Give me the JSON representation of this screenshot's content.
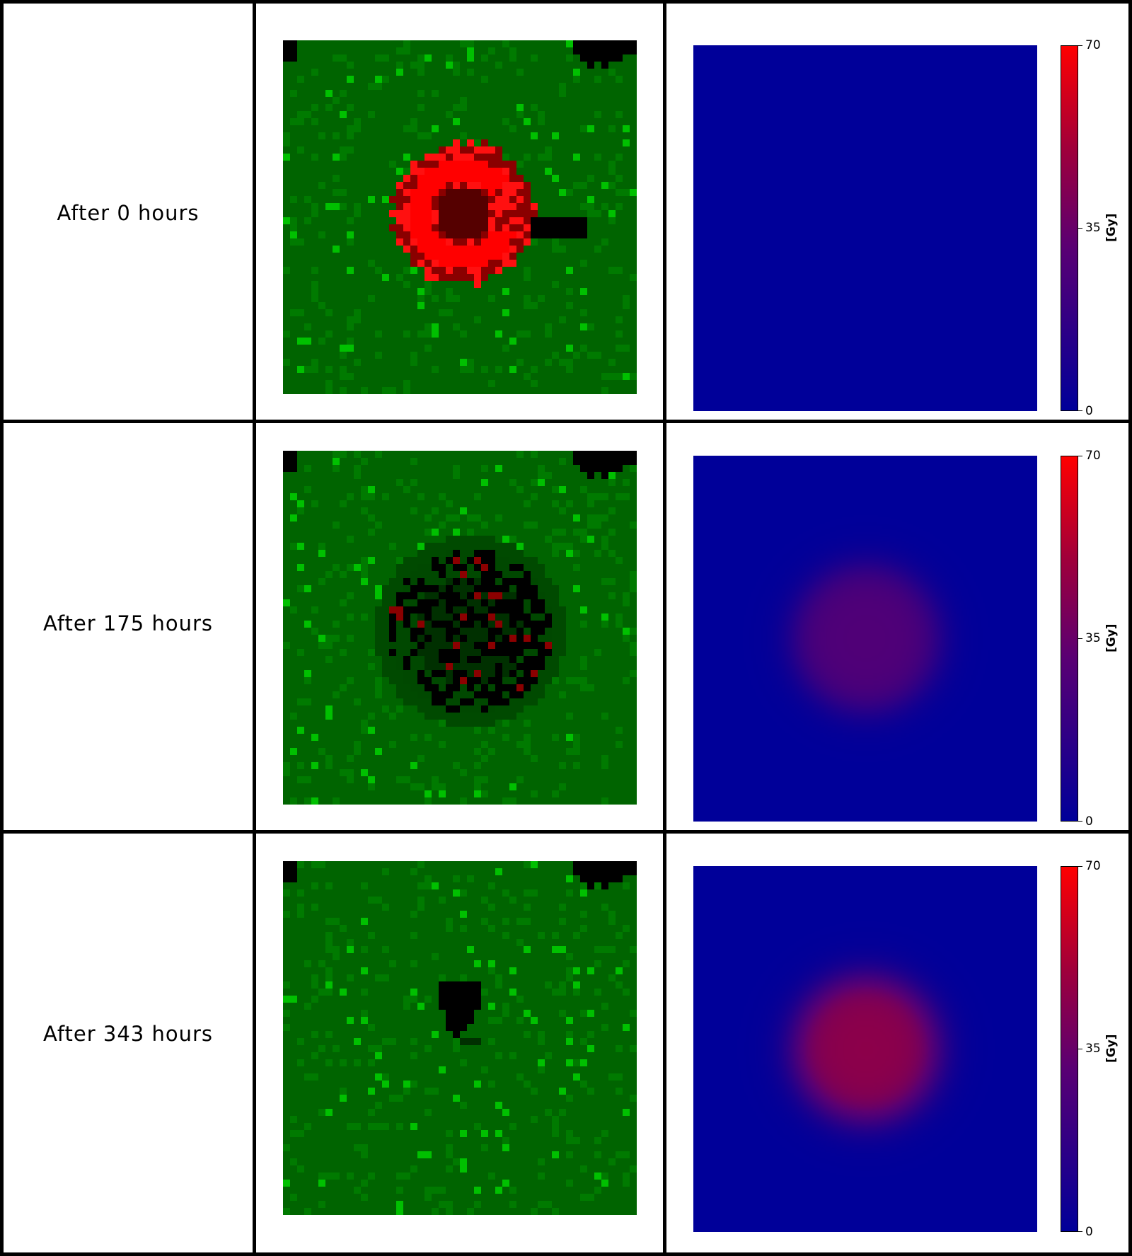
{
  "rows": [
    {
      "label": "After 0 hours",
      "dose_peak_gy": 0,
      "lesion": "ring"
    },
    {
      "label": "After 175 hours",
      "dose_peak_gy": 28,
      "lesion": "scattered"
    },
    {
      "label": "After 343 hours",
      "dose_peak_gy": 45,
      "lesion": "small"
    }
  ],
  "colorbar": {
    "min": "0",
    "mid": "35",
    "max": "70",
    "unit": "[Gy]"
  },
  "colors": {
    "healthy_cell": "#006400",
    "bright_cell": "#00b000",
    "tumor_cell": "#ff0000",
    "empty": "#000000",
    "dose_low": "#000099",
    "dose_high": "#ff0000"
  }
}
